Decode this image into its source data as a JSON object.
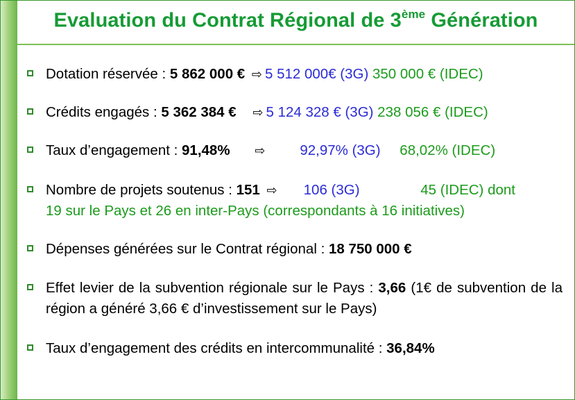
{
  "title": {
    "main": "Evaluation du Contrat Régional de 3",
    "sup": "ème",
    "end": " Génération"
  },
  "items": [
    {
      "label": "Dotation réservée : ",
      "total": "5 862 000 €",
      "arrow": "⇨",
      "g3": "5 512 000€ (3G)",
      "idec": "350 000 € (IDEC)"
    },
    {
      "label": "Crédits engagés : ",
      "total": "5 362 384 €",
      "arrow": "⇨",
      "g3": "5 124 328 € (3G)",
      "idec": "238 056 € (IDEC)"
    },
    {
      "label": "Taux d’engagement : ",
      "total": "91,48%",
      "arrow": "⇨",
      "g3": "92,97% (3G)",
      "idec": "68,02% (IDEC)"
    },
    {
      "label": "Nombre de projets soutenus : ",
      "total": "151",
      "arrow": "⇨",
      "g3": "106 (3G)",
      "idec": "45 (IDEC) dont",
      "idec_line2": "19 sur le Pays et 26 en inter-Pays (correspondants à 16 initiatives)"
    },
    {
      "label": "Dépenses générées sur le Contrat régional : ",
      "total": "18 750 000 €"
    },
    {
      "label": "Effet levier de la subvention régionale sur le Pays : ",
      "total": "3,66",
      "after": " (1€ de subvention de la région a généré 3,66 € d’investissement sur le Pays)"
    },
    {
      "label": "Taux d’engagement des crédits en intercommunalité : ",
      "total": "36,84%"
    }
  ],
  "colors": {
    "title": "#169b35",
    "blue": "#2b2bd6",
    "green": "#1c9b1c",
    "bar": "#6cb64a"
  }
}
